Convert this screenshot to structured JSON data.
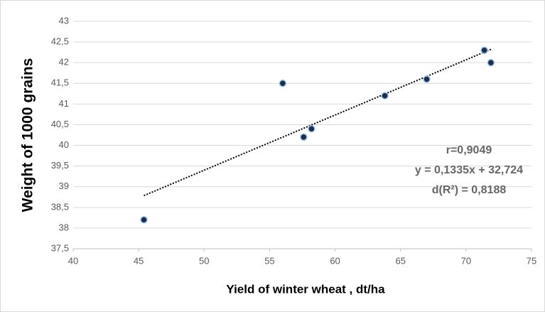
{
  "chart_data": {
    "type": "scatter",
    "x_label": "Yield of winter wheat , dt/ha",
    "y_label": "Weight of 1000 grains",
    "x": [
      45.4,
      56,
      57.6,
      58.2,
      63.8,
      67,
      71.4,
      71.9
    ],
    "values": [
      38.2,
      41.5,
      40.2,
      40.4,
      41.2,
      41.6,
      42.3,
      42.0
    ],
    "color": "#1f2d4a",
    "xlim": [
      40,
      75
    ],
    "xticks": [
      40,
      45,
      50,
      55,
      60,
      65,
      70,
      75
    ],
    "ylim": [
      37.5,
      43
    ],
    "yticks": [
      {
        "value": 37.5,
        "label": "37,5"
      },
      38,
      {
        "value": 38.5,
        "label": "38,5"
      },
      39,
      {
        "value": 39.5,
        "label": "39,5"
      },
      40,
      {
        "value": 40.5,
        "label": "40,5"
      },
      41,
      {
        "value": 41.5,
        "label": "41,5"
      },
      42,
      {
        "value": 42.5,
        "label": "42,5"
      },
      43
    ],
    "grid": true,
    "trendline": {
      "slope": 0.1335,
      "intercept": 32.724
    },
    "annotations": [
      "r=0,9049",
      "y = 0,1335x + 32,724",
      "d(R²) = 0,8188"
    ]
  }
}
